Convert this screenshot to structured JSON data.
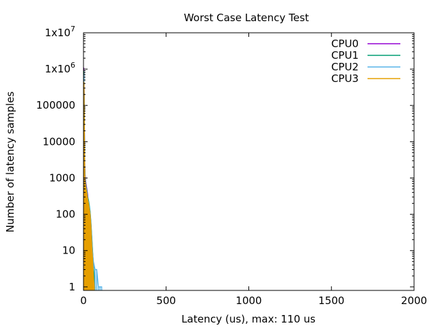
{
  "chart_data": {
    "type": "line",
    "title": "Worst Case Latency Test",
    "xlabel": "Latency (us), max: 110 us",
    "ylabel": "Number of latency samples",
    "xlim": [
      0,
      2000
    ],
    "ylim": [
      0.8,
      10000000
    ],
    "yscale": "log",
    "grid": false,
    "legend": "top-right",
    "x_ticks": [
      0,
      500,
      1000,
      1500,
      2000
    ],
    "x_tick_labels": [
      "0",
      "500",
      "1000",
      "1500",
      "2000"
    ],
    "y_ticks": [
      1,
      10,
      100,
      1000,
      10000,
      100000,
      1000000,
      10000000
    ],
    "y_tick_labels": [
      "1",
      "10",
      "100",
      "1000",
      "10000",
      "100000",
      "1x10^6",
      "1x10^7"
    ],
    "series": [
      {
        "name": "CPU0",
        "color": "#9400d3",
        "x": [
          1,
          2,
          3,
          4,
          5,
          6,
          7,
          8,
          10,
          12,
          15,
          20,
          25,
          30,
          35,
          40,
          45,
          50,
          55,
          60,
          65
        ],
        "y": [
          1100000,
          1000000,
          600000,
          200000,
          50000,
          15000,
          5000,
          2000,
          1200,
          900,
          700,
          500,
          350,
          200,
          150,
          100,
          50,
          20,
          8,
          3,
          1
        ]
      },
      {
        "name": "CPU1",
        "color": "#009e73",
        "x": [
          1,
          2,
          3,
          4,
          5,
          6,
          7,
          8,
          10,
          12,
          15,
          20,
          25,
          30,
          35,
          40,
          45,
          50,
          55,
          60,
          65,
          70
        ],
        "y": [
          400000,
          900000,
          500000,
          150000,
          40000,
          12000,
          4000,
          1800,
          1000,
          800,
          600,
          450,
          300,
          250,
          180,
          120,
          60,
          25,
          10,
          4,
          2,
          1
        ]
      },
      {
        "name": "CPU2",
        "color": "#56b4e9",
        "x": [
          1,
          2,
          3,
          4,
          5,
          6,
          7,
          8,
          10,
          12,
          15,
          20,
          25,
          30,
          35,
          40,
          45,
          50,
          55,
          60,
          70,
          80,
          90,
          100,
          110
        ],
        "y": [
          300000,
          700000,
          450000,
          120000,
          30000,
          10000,
          3500,
          1500,
          900,
          700,
          550,
          400,
          280,
          220,
          160,
          110,
          55,
          22,
          9,
          5,
          3,
          3,
          1,
          1,
          1
        ]
      },
      {
        "name": "CPU3",
        "color": "#e69f00",
        "x": [
          1,
          2,
          3,
          4,
          5,
          6,
          7,
          8,
          10,
          12,
          15,
          20,
          25,
          30,
          35,
          40,
          45,
          50,
          55,
          60,
          65
        ],
        "y": [
          200000,
          450000,
          400000,
          100000,
          25000,
          8000,
          3000,
          1200,
          800,
          650,
          500,
          380,
          260,
          200,
          140,
          100,
          45,
          14,
          6,
          2,
          1
        ]
      }
    ]
  }
}
